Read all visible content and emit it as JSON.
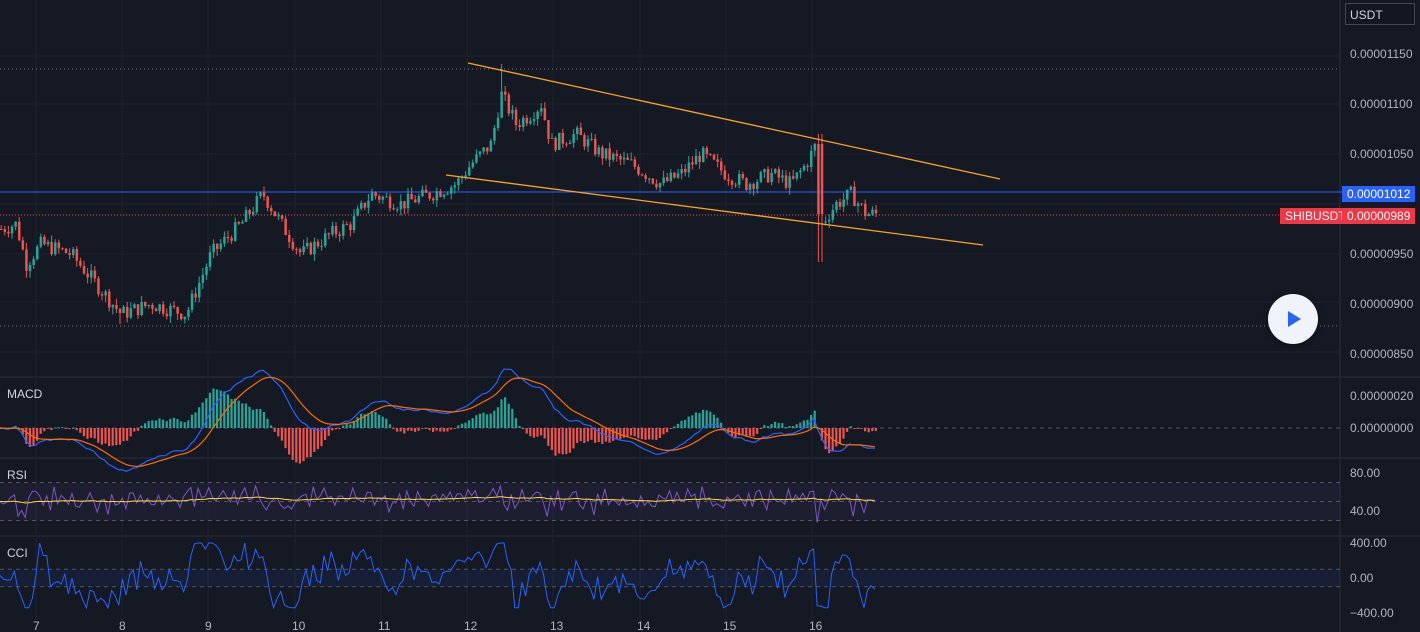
{
  "symbol": "SHIBUSDT",
  "currency": "USDT",
  "colors": {
    "background": "#151924",
    "up": "#26a69a",
    "down": "#ef5350",
    "currentLine": "#2962ff",
    "lastPriceTag": "#f23645",
    "currentTag": "#2962ff",
    "trendline": "#f7a326",
    "macd": "#2962ff",
    "signal": "#ff6d00",
    "rsi": "#7e57c2",
    "rsiMa": "#fdd835",
    "cci": "#2962ff"
  },
  "price_axis": {
    "labels": [
      "0.00001150",
      "0.00001100",
      "0.00001050",
      "0.00000950",
      "0.00000900",
      "0.00000850"
    ],
    "values": [
      1.15e-05,
      1.1e-05,
      1.05e-05,
      9.5e-06,
      9e-06,
      8.5e-06
    ]
  },
  "current_price": {
    "label": "0.00001012",
    "value": 1.012e-05
  },
  "last_price": {
    "label": "0.00000989",
    "value": 9.89e-06
  },
  "macd": {
    "label": "MACD",
    "axis_labels": [
      "0.00000020",
      "0.00000000"
    ],
    "axis_values": [
      2e-07,
      0
    ]
  },
  "rsi": {
    "label": "RSI",
    "axis_labels": [
      "80.00",
      "40.00"
    ],
    "axis_values": [
      80,
      40
    ]
  },
  "cci": {
    "label": "CCI",
    "axis_labels": [
      "400.00",
      "0.00",
      "−400.00"
    ],
    "axis_values": [
      400,
      0,
      -400
    ]
  },
  "time_axis": {
    "labels": [
      "7",
      "8",
      "9",
      "10",
      "11",
      "12",
      "13",
      "14",
      "15",
      "16"
    ]
  },
  "play_button": {
    "icon": "play-icon"
  },
  "chart_data": {
    "type": "candlestick",
    "series": [
      {
        "name": "SHIBUSDT",
        "x": [
          "7",
          "8",
          "9",
          "10",
          "11",
          "12",
          "13",
          "14",
          "15",
          "16"
        ],
        "close_approx": [
          9.6e-06,
          8.9e-06,
          9.7e-06,
          9.5e-06,
          1.01e-05,
          1.08e-05,
          1.06e-05,
          1.03e-05,
          1.02e-05,
          9.89e-06
        ]
      }
    ]
  }
}
